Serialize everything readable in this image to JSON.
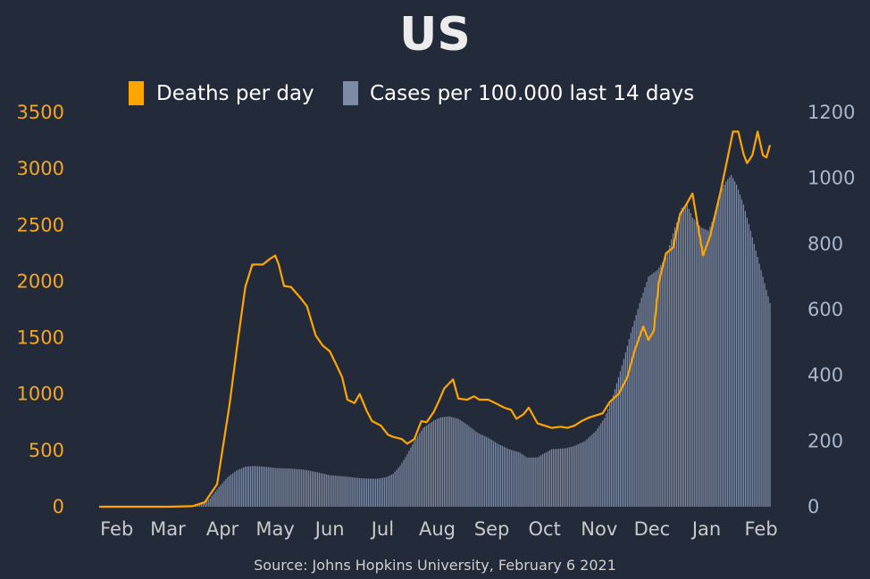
{
  "chart_data": {
    "type": "bar+line",
    "title": "US",
    "source": "Source: Johns Hopkins University, February 6 2021",
    "colors": {
      "deaths": "#ffa500",
      "cases": "#7e8ba4",
      "background": "#232b3b",
      "left_axis": "#f5a623",
      "right_axis": "#a9b7cc",
      "x_axis": "#c9c9c9"
    },
    "legend": {
      "placement": "top-center",
      "entries": [
        "Deaths per day",
        "Cases per 100.000 last 14 days"
      ]
    },
    "x_axis": {
      "start": "2020-01-22",
      "end": "2021-02-06",
      "ticks": [
        "Feb",
        "Mar",
        "Apr",
        "May",
        "Jun",
        "Jul",
        "Aug",
        "Sep",
        "Oct",
        "Nov",
        "Dec",
        "Jan",
        "Feb"
      ]
    },
    "y_left": {
      "ylim": [
        0,
        3500
      ],
      "ticks": [
        0,
        500,
        1000,
        1500,
        2000,
        2500,
        3000,
        3500
      ]
    },
    "y_right": {
      "ylim": [
        0,
        1200
      ],
      "ticks": [
        0,
        200,
        400,
        600,
        800,
        1000,
        1200
      ]
    },
    "series": [
      {
        "name": "Deaths per day",
        "axis": "left",
        "kind": "line",
        "points": [
          [
            "2020-01-22",
            0
          ],
          [
            "2020-03-01",
            0
          ],
          [
            "2020-03-15",
            5
          ],
          [
            "2020-03-22",
            40
          ],
          [
            "2020-03-29",
            200
          ],
          [
            "2020-04-05",
            900
          ],
          [
            "2020-04-10",
            1500
          ],
          [
            "2020-04-14",
            1950
          ],
          [
            "2020-04-18",
            2150
          ],
          [
            "2020-04-24",
            2150
          ],
          [
            "2020-04-28",
            2200
          ],
          [
            "2020-05-01",
            2230
          ],
          [
            "2020-05-03",
            2150
          ],
          [
            "2020-05-06",
            1960
          ],
          [
            "2020-05-10",
            1950
          ],
          [
            "2020-05-15",
            1860
          ],
          [
            "2020-05-19",
            1780
          ],
          [
            "2020-05-24",
            1520
          ],
          [
            "2020-05-28",
            1430
          ],
          [
            "2020-06-01",
            1380
          ],
          [
            "2020-06-05",
            1250
          ],
          [
            "2020-06-08",
            1150
          ],
          [
            "2020-06-11",
            950
          ],
          [
            "2020-06-15",
            920
          ],
          [
            "2020-06-18",
            1000
          ],
          [
            "2020-06-22",
            850
          ],
          [
            "2020-06-25",
            760
          ],
          [
            "2020-06-30",
            720
          ],
          [
            "2020-07-04",
            640
          ],
          [
            "2020-07-07",
            620
          ],
          [
            "2020-07-12",
            600
          ],
          [
            "2020-07-15",
            560
          ],
          [
            "2020-07-19",
            600
          ],
          [
            "2020-07-23",
            760
          ],
          [
            "2020-07-26",
            750
          ],
          [
            "2020-07-30",
            840
          ],
          [
            "2020-08-02",
            940
          ],
          [
            "2020-08-05",
            1050
          ],
          [
            "2020-08-10",
            1130
          ],
          [
            "2020-08-13",
            960
          ],
          [
            "2020-08-18",
            950
          ],
          [
            "2020-08-22",
            980
          ],
          [
            "2020-08-25",
            950
          ],
          [
            "2020-08-30",
            950
          ],
          [
            "2020-09-03",
            920
          ],
          [
            "2020-09-08",
            880
          ],
          [
            "2020-09-12",
            860
          ],
          [
            "2020-09-15",
            780
          ],
          [
            "2020-09-19",
            820
          ],
          [
            "2020-09-22",
            880
          ],
          [
            "2020-09-27",
            740
          ],
          [
            "2020-10-01",
            720
          ],
          [
            "2020-10-05",
            700
          ],
          [
            "2020-10-10",
            710
          ],
          [
            "2020-10-14",
            700
          ],
          [
            "2020-10-18",
            720
          ],
          [
            "2020-10-22",
            760
          ],
          [
            "2020-10-26",
            790
          ],
          [
            "2020-10-30",
            810
          ],
          [
            "2020-11-03",
            830
          ],
          [
            "2020-11-07",
            930
          ],
          [
            "2020-11-12",
            1000
          ],
          [
            "2020-11-17",
            1150
          ],
          [
            "2020-11-21",
            1380
          ],
          [
            "2020-11-26",
            1600
          ],
          [
            "2020-11-29",
            1480
          ],
          [
            "2020-12-02",
            1560
          ],
          [
            "2020-12-05",
            2000
          ],
          [
            "2020-12-09",
            2250
          ],
          [
            "2020-12-13",
            2300
          ],
          [
            "2020-12-17",
            2600
          ],
          [
            "2020-12-20",
            2670
          ],
          [
            "2020-12-24",
            2780
          ],
          [
            "2020-12-27",
            2500
          ],
          [
            "2020-12-30",
            2230
          ],
          [
            "2021-01-03",
            2400
          ],
          [
            "2021-01-06",
            2600
          ],
          [
            "2021-01-09",
            2800
          ],
          [
            "2021-01-13",
            3100
          ],
          [
            "2021-01-16",
            3330
          ],
          [
            "2021-01-19",
            3330
          ],
          [
            "2021-01-22",
            3130
          ],
          [
            "2021-01-24",
            3050
          ],
          [
            "2021-01-27",
            3120
          ],
          [
            "2021-01-30",
            3330
          ],
          [
            "2021-02-02",
            3120
          ],
          [
            "2021-02-04",
            3100
          ],
          [
            "2021-02-06",
            3210
          ]
        ]
      },
      {
        "name": "Cases per 100.000 last 14 days",
        "axis": "right",
        "kind": "bar",
        "points": [
          [
            "2020-01-22",
            0
          ],
          [
            "2020-03-08",
            0
          ],
          [
            "2020-03-15",
            2
          ],
          [
            "2020-03-20",
            8
          ],
          [
            "2020-03-25",
            25
          ],
          [
            "2020-03-30",
            60
          ],
          [
            "2020-04-04",
            90
          ],
          [
            "2020-04-09",
            110
          ],
          [
            "2020-04-14",
            122
          ],
          [
            "2020-04-19",
            124
          ],
          [
            "2020-04-25",
            122
          ],
          [
            "2020-05-01",
            118
          ],
          [
            "2020-05-10",
            116
          ],
          [
            "2020-05-17",
            113
          ],
          [
            "2020-05-25",
            105
          ],
          [
            "2020-06-01",
            96
          ],
          [
            "2020-06-10",
            92
          ],
          [
            "2020-06-20",
            86
          ],
          [
            "2020-06-28",
            85
          ],
          [
            "2020-07-03",
            90
          ],
          [
            "2020-07-07",
            100
          ],
          [
            "2020-07-11",
            125
          ],
          [
            "2020-07-15",
            160
          ],
          [
            "2020-07-19",
            200
          ],
          [
            "2020-07-24",
            240
          ],
          [
            "2020-07-30",
            262
          ],
          [
            "2020-08-03",
            272
          ],
          [
            "2020-08-08",
            275
          ],
          [
            "2020-08-13",
            268
          ],
          [
            "2020-08-18",
            250
          ],
          [
            "2020-08-24",
            225
          ],
          [
            "2020-08-30",
            210
          ],
          [
            "2020-09-05",
            190
          ],
          [
            "2020-09-11",
            175
          ],
          [
            "2020-09-17",
            165
          ],
          [
            "2020-09-21",
            150
          ],
          [
            "2020-09-27",
            150
          ],
          [
            "2020-09-30",
            160
          ],
          [
            "2020-10-05",
            175
          ],
          [
            "2020-10-13",
            178
          ],
          [
            "2020-10-18",
            185
          ],
          [
            "2020-10-24",
            200
          ],
          [
            "2020-10-30",
            230
          ],
          [
            "2020-11-04",
            270
          ],
          [
            "2020-11-09",
            340
          ],
          [
            "2020-11-14",
            430
          ],
          [
            "2020-11-19",
            530
          ],
          [
            "2020-11-24",
            620
          ],
          [
            "2020-11-29",
            700
          ],
          [
            "2020-12-04",
            720
          ],
          [
            "2020-12-09",
            760
          ],
          [
            "2020-12-14",
            850
          ],
          [
            "2020-12-18",
            910
          ],
          [
            "2020-12-21",
            920
          ],
          [
            "2020-12-24",
            880
          ],
          [
            "2020-12-29",
            850
          ],
          [
            "2021-01-02",
            840
          ],
          [
            "2021-01-05",
            880
          ],
          [
            "2021-01-09",
            960
          ],
          [
            "2021-01-12,990",
            990
          ],
          [
            "2021-01-15",
            1010
          ],
          [
            "2021-01-18",
            980
          ],
          [
            "2021-01-22",
            920
          ],
          [
            "2021-01-26",
            840
          ],
          [
            "2021-01-30",
            760
          ],
          [
            "2021-02-03",
            680
          ],
          [
            "2021-02-06",
            620
          ]
        ]
      }
    ]
  }
}
